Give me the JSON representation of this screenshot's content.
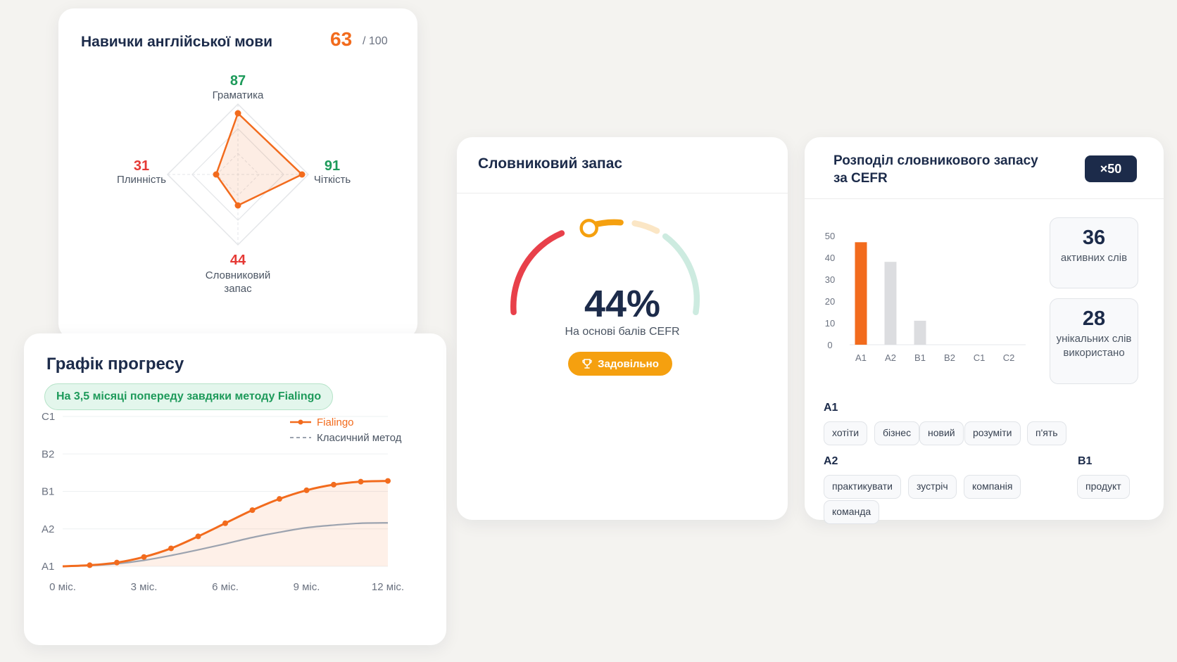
{
  "skills": {
    "title": "Навички англійської мови",
    "score": "63",
    "max": "/ 100",
    "axes": [
      {
        "label": "Граматика",
        "value": "87",
        "color": "#1d9a5a"
      },
      {
        "label": "Чіткість",
        "value": "91",
        "color": "#1d9a5a"
      },
      {
        "label": "Словниковий",
        "label2": "запас",
        "value": "44",
        "color": "#e53935"
      },
      {
        "label": "Плинність",
        "value": "31",
        "color": "#e53935"
      }
    ]
  },
  "progress": {
    "title": "Графік прогресу",
    "badge": "На 3,5 місяці попереду завдяки методу Fialingo",
    "legend": {
      "primary": "Fialingo",
      "secondary": "Класичний метод"
    },
    "colors": {
      "primary": "#f26b1d",
      "secondary": "#9ca3af"
    },
    "chart_data": {
      "type": "line",
      "x": [
        0,
        1,
        2,
        3,
        4,
        5,
        6,
        7,
        8,
        9,
        10,
        11,
        12
      ],
      "x_ticks": [
        "0 міс.",
        "3 міс.",
        "6 міс.",
        "9 міс.",
        "12 міс."
      ],
      "y_ticks": [
        "A1",
        "A2",
        "B1",
        "B2",
        "C1"
      ],
      "ylim": [
        0,
        4
      ],
      "series": [
        {
          "name": "Fialingo",
          "values": [
            0,
            0.03,
            0.1,
            0.25,
            0.48,
            0.8,
            1.15,
            1.5,
            1.8,
            2.03,
            2.18,
            2.26,
            2.28
          ]
        },
        {
          "name": "Класичний метод",
          "values": [
            0,
            0.02,
            0.07,
            0.16,
            0.29,
            0.44,
            0.6,
            0.77,
            0.91,
            1.03,
            1.1,
            1.15,
            1.16
          ]
        }
      ]
    }
  },
  "vocab": {
    "title": "Словниковий запас",
    "percent": "44%",
    "gauge_value": 0.44,
    "caption": "На основі балів CEFR",
    "badge": "Задовільно",
    "badge_icon": "trophy-icon"
  },
  "cefr": {
    "title": "Розподіл словникового запасу за CEFR",
    "multiplier": "×50",
    "chart_data": {
      "type": "bar",
      "categories": [
        "A1",
        "A2",
        "B1",
        "B2",
        "C1",
        "C2"
      ],
      "values": [
        47,
        38,
        11,
        0,
        0,
        0
      ],
      "y_ticks": [
        0,
        10,
        20,
        30,
        40,
        50
      ],
      "ylim": [
        0,
        50
      ],
      "highlight_color": "#f26b1d",
      "bar_color": "#dcdde0"
    },
    "stats": [
      {
        "number": "36",
        "label": "активних слів"
      },
      {
        "number": "28",
        "label": "унікальних слів використано"
      }
    ],
    "levels": {
      "a1": {
        "label": "A1",
        "words": [
          "хотіти",
          "бізнес",
          "новий",
          "розуміти",
          "п'ять"
        ]
      },
      "a2": {
        "label": "A2",
        "words": [
          "практикувати",
          "зустріч",
          "компанія",
          "команда"
        ]
      },
      "b1": {
        "label": "B1",
        "words": [
          "продукт"
        ]
      }
    }
  }
}
